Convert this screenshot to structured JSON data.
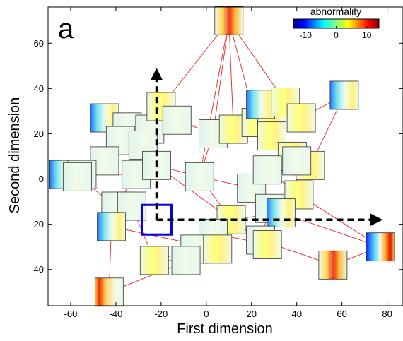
{
  "panel_label": "a",
  "chart_data": {
    "type": "scatter",
    "xlabel": "First dimension",
    "ylabel": "Second dimension",
    "xlim": [
      -70,
      87
    ],
    "ylim": [
      -56,
      76
    ],
    "xticks": [
      -60,
      -40,
      -20,
      0,
      20,
      40,
      60,
      80
    ],
    "yticks": [
      -40,
      -20,
      0,
      20,
      40,
      60
    ],
    "grid": false,
    "marker": "heatmap-thumbnail",
    "colorbar": {
      "title": "abnormality",
      "min": -14,
      "max": 14,
      "ticks": [
        -10,
        0,
        10
      ],
      "colormap": "jet",
      "placement": "top-right"
    },
    "highlight": {
      "x": -22,
      "y": -18,
      "color": "#0000dd"
    },
    "arrows": [
      {
        "from": [
          -22,
          -18
        ],
        "to": [
          -22,
          46
        ],
        "style": "dashed"
      },
      {
        "from": [
          -22,
          -18
        ],
        "to": [
          75,
          -18
        ],
        "style": "dashed"
      }
    ],
    "points": [
      {
        "x": 10,
        "y": 70,
        "pattern": "hot-center"
      },
      {
        "x": -45,
        "y": 27,
        "pattern": "cool-left"
      },
      {
        "x": -35,
        "y": 23,
        "pattern": "pale"
      },
      {
        "x": -25,
        "y": 22,
        "pattern": "pale"
      },
      {
        "x": -20,
        "y": 32,
        "pattern": "yellow"
      },
      {
        "x": -13,
        "y": 26,
        "pattern": "pale"
      },
      {
        "x": -38,
        "y": 17,
        "pattern": "pale"
      },
      {
        "x": -28,
        "y": 15,
        "pattern": "pale"
      },
      {
        "x": -45,
        "y": 8,
        "pattern": "pale"
      },
      {
        "x": -63,
        "y": 2,
        "pattern": "cool-left"
      },
      {
        "x": -55,
        "y": 2,
        "pattern": "pale"
      },
      {
        "x": -31,
        "y": 2,
        "pattern": "pale"
      },
      {
        "x": 3,
        "y": 20,
        "pattern": "pale"
      },
      {
        "x": 12,
        "y": 22,
        "pattern": "yellow"
      },
      {
        "x": 22,
        "y": 25,
        "pattern": "yellow"
      },
      {
        "x": 29,
        "y": 30,
        "pattern": "yellow"
      },
      {
        "x": 24,
        "y": 33,
        "pattern": "cool-left"
      },
      {
        "x": 35,
        "y": 34,
        "pattern": "yellow"
      },
      {
        "x": 42,
        "y": 27,
        "pattern": "yellow"
      },
      {
        "x": 61,
        "y": 37,
        "pattern": "cool-left"
      },
      {
        "x": 29,
        "y": 19,
        "pattern": "yellow"
      },
      {
        "x": 38,
        "y": 10,
        "pattern": "yellow"
      },
      {
        "x": 46,
        "y": 6,
        "pattern": "yellow"
      },
      {
        "x": 40,
        "y": 8,
        "pattern": "pale"
      },
      {
        "x": -3,
        "y": 1,
        "pattern": "pale"
      },
      {
        "x": 20,
        "y": -4,
        "pattern": "pale"
      },
      {
        "x": 27,
        "y": 4,
        "pattern": "pale"
      },
      {
        "x": 41,
        "y": -7,
        "pattern": "yellow"
      },
      {
        "x": -40,
        "y": -12,
        "pattern": "pale"
      },
      {
        "x": -33,
        "y": -12,
        "pattern": "pale"
      },
      {
        "x": 28,
        "y": -13,
        "pattern": "pale"
      },
      {
        "x": 33,
        "y": -15,
        "pattern": "cool-left"
      },
      {
        "x": 11,
        "y": -18,
        "pattern": "yellow"
      },
      {
        "x": -42,
        "y": -21,
        "pattern": "cool-left"
      },
      {
        "x": 3,
        "y": -24,
        "pattern": "pale"
      },
      {
        "x": 24,
        "y": -27,
        "pattern": "pale"
      },
      {
        "x": 27,
        "y": -29,
        "pattern": "yellow"
      },
      {
        "x": -5,
        "y": -31,
        "pattern": "pale"
      },
      {
        "x": 5,
        "y": -31,
        "pattern": "yellow"
      },
      {
        "x": -9,
        "y": -36,
        "pattern": "pale"
      },
      {
        "x": -23,
        "y": -36,
        "pattern": "yellow"
      },
      {
        "x": 56,
        "y": -38,
        "pattern": "hot-center"
      },
      {
        "x": 77,
        "y": -30,
        "pattern": "cool-left-hot"
      },
      {
        "x": -43,
        "y": -50,
        "pattern": "hot-left"
      },
      {
        "x": -57,
        "y": 1,
        "pattern": "pale"
      },
      {
        "x": -22,
        "y": 6,
        "pattern": "pale"
      }
    ],
    "edges": [
      [
        0,
        12
      ],
      [
        0,
        13
      ],
      [
        0,
        14
      ],
      [
        0,
        17
      ],
      [
        0,
        24
      ],
      [
        0,
        4
      ],
      [
        1,
        2
      ],
      [
        2,
        3
      ],
      [
        3,
        5
      ],
      [
        2,
        6
      ],
      [
        6,
        7
      ],
      [
        7,
        11
      ],
      [
        6,
        8
      ],
      [
        8,
        9
      ],
      [
        9,
        10
      ],
      [
        10,
        11
      ],
      [
        11,
        28
      ],
      [
        28,
        29
      ],
      [
        29,
        33
      ],
      [
        33,
        43
      ],
      [
        33,
        38
      ],
      [
        28,
        44
      ],
      [
        4,
        5
      ],
      [
        5,
        12
      ],
      [
        12,
        13
      ],
      [
        13,
        14
      ],
      [
        14,
        15
      ],
      [
        15,
        16
      ],
      [
        16,
        18
      ],
      [
        18,
        19
      ],
      [
        14,
        20
      ],
      [
        20,
        21
      ],
      [
        21,
        22
      ],
      [
        22,
        23
      ],
      [
        23,
        26
      ],
      [
        26,
        25
      ],
      [
        25,
        24
      ],
      [
        24,
        45
      ],
      [
        45,
        11
      ],
      [
        12,
        24
      ],
      [
        24,
        32
      ],
      [
        32,
        31
      ],
      [
        31,
        30
      ],
      [
        30,
        25
      ],
      [
        26,
        27
      ],
      [
        27,
        31
      ],
      [
        27,
        42
      ],
      [
        31,
        42
      ],
      [
        42,
        41
      ],
      [
        35,
        41
      ],
      [
        30,
        35
      ],
      [
        34,
        36
      ],
      [
        34,
        37
      ],
      [
        37,
        40
      ],
      [
        39,
        40
      ],
      [
        39,
        34
      ],
      [
        36,
        32
      ],
      [
        38,
        43
      ],
      [
        19,
        22
      ],
      [
        20,
        13
      ],
      [
        29,
        40
      ],
      [
        3,
        7
      ],
      [
        45,
        32
      ],
      [
        21,
        27
      ],
      [
        36,
        35
      ],
      [
        38,
        39
      ],
      [
        1,
        13
      ]
    ]
  }
}
